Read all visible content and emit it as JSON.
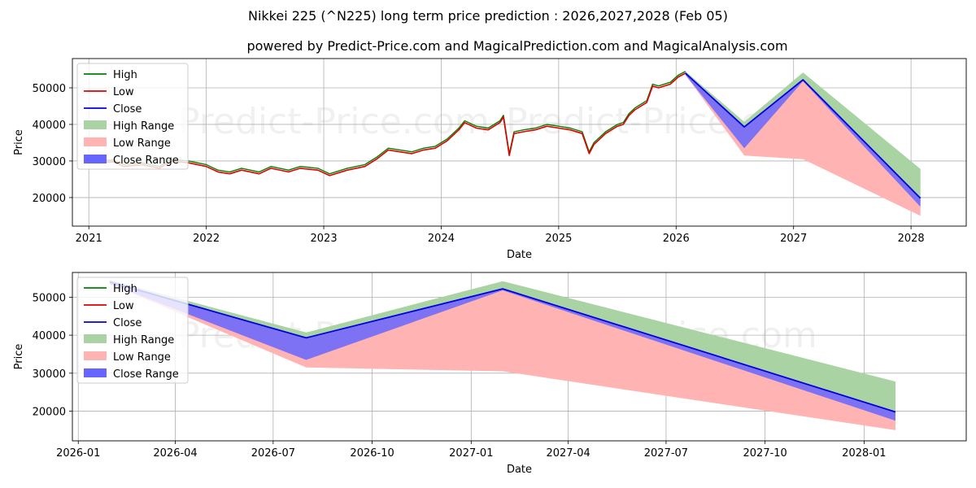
{
  "title": "Nikkei 225 (^N225) long term price prediction : 2026,2027,2028 (Feb 05)",
  "subtitle": "powered by Predict-Price.com and MagicalPrediction.com and MagicalAnalysis.com",
  "watermark": "Predict-Price.com",
  "colors": {
    "high": "#008000",
    "low": "#e00000",
    "close": "#0000e0",
    "high_range": "#a9d3a3",
    "low_range": "#ffb3b3",
    "close_range": "#6666ff"
  },
  "legend": [
    "High",
    "Low",
    "Close",
    "High Range",
    "Low Range",
    "Close Range"
  ],
  "chart_data": [
    {
      "type": "line",
      "name": "long-term",
      "xlabel": "Date",
      "ylabel": "Price",
      "xlim": [
        2020.86,
        2028.47
      ],
      "ylim": [
        12200,
        58000
      ],
      "x_ticks": [
        2021,
        2022,
        2023,
        2024,
        2025,
        2026,
        2027,
        2028
      ],
      "x_tick_labels": [
        "2021",
        "2022",
        "2023",
        "2024",
        "2025",
        "2026",
        "2027",
        "2028"
      ],
      "y_ticks": [
        20000,
        30000,
        40000,
        50000
      ],
      "y_tick_labels": [
        "20000",
        "30000",
        "40000",
        "50000"
      ],
      "history": {
        "x": [
          2021.08,
          2021.2,
          2021.3,
          2021.45,
          2021.6,
          2021.7,
          2021.85,
          2022.0,
          2022.1,
          2022.2,
          2022.3,
          2022.45,
          2022.55,
          2022.7,
          2022.8,
          2022.95,
          2023.05,
          2023.2,
          2023.35,
          2023.45,
          2023.55,
          2023.65,
          2023.75,
          2023.85,
          2023.95,
          2024.05,
          2024.15,
          2024.2,
          2024.3,
          2024.4,
          2024.5,
          2024.53,
          2024.58,
          2024.62,
          2024.7,
          2024.8,
          2024.9,
          2025.0,
          2025.1,
          2025.2,
          2025.26,
          2025.3,
          2025.4,
          2025.5,
          2025.55,
          2025.6,
          2025.65,
          2025.75,
          2025.8,
          2025.85,
          2025.95,
          2026.02,
          2026.08
        ],
        "close": [
          29500,
          29800,
          28500,
          29000,
          28000,
          30000,
          29500,
          28500,
          27000,
          26500,
          27500,
          26500,
          28000,
          27000,
          28000,
          27500,
          26000,
          27500,
          28500,
          30500,
          33000,
          32500,
          32000,
          33000,
          33500,
          35500,
          38500,
          40500,
          39000,
          38500,
          40500,
          42000,
          31500,
          37500,
          38000,
          38500,
          39500,
          39000,
          38500,
          37500,
          32000,
          34500,
          37500,
          39500,
          40000,
          42500,
          44000,
          46000,
          50500,
          50000,
          51000,
          53000,
          54000
        ]
      },
      "forecast": {
        "x": [
          2026.08,
          2026.58,
          2027.08,
          2028.08
        ],
        "close": [
          54000,
          39300,
          52200,
          19800
        ],
        "high_range": {
          "upper": [
            54500,
            40700,
            54200,
            27800
          ],
          "lower": [
            53500,
            39300,
            52200,
            19800
          ]
        },
        "low_range": {
          "upper": [
            54000,
            39300,
            52200,
            19800
          ],
          "lower": [
            53500,
            31500,
            30500,
            15000
          ]
        },
        "close_range": {
          "upper": [
            54300,
            39300,
            52200,
            19800
          ],
          "lower": [
            53500,
            33500,
            51800,
            17500
          ]
        }
      }
    },
    {
      "type": "line",
      "name": "forecast-detail",
      "xlabel": "Date",
      "ylabel": "Price",
      "xlim": [
        2025.985,
        2028.26
      ],
      "ylim": [
        12200,
        56500
      ],
      "x_ticks": [
        2026.0,
        2026.247,
        2026.496,
        2026.748,
        2027.0,
        2027.247,
        2027.496,
        2027.748,
        2028.0
      ],
      "x_tick_labels": [
        "2026-01",
        "2026-04",
        "2026-07",
        "2026-10",
        "2027-01",
        "2027-04",
        "2027-07",
        "2027-10",
        "2028-01"
      ],
      "y_ticks": [
        20000,
        30000,
        40000,
        50000
      ],
      "y_tick_labels": [
        "20000",
        "30000",
        "40000",
        "50000"
      ],
      "forecast": {
        "x": [
          2026.08,
          2026.58,
          2027.08,
          2028.08
        ],
        "close": [
          54000,
          39300,
          52200,
          19800
        ],
        "high_range": {
          "upper": [
            54500,
            40700,
            54200,
            27800
          ],
          "lower": [
            53500,
            39300,
            52200,
            19800
          ]
        },
        "low_range": {
          "upper": [
            54000,
            39300,
            52200,
            19800
          ],
          "lower": [
            53500,
            31500,
            30500,
            15000
          ]
        },
        "close_range": {
          "upper": [
            54300,
            39300,
            52200,
            19800
          ],
          "lower": [
            53500,
            33500,
            51800,
            17500
          ]
        }
      }
    }
  ]
}
